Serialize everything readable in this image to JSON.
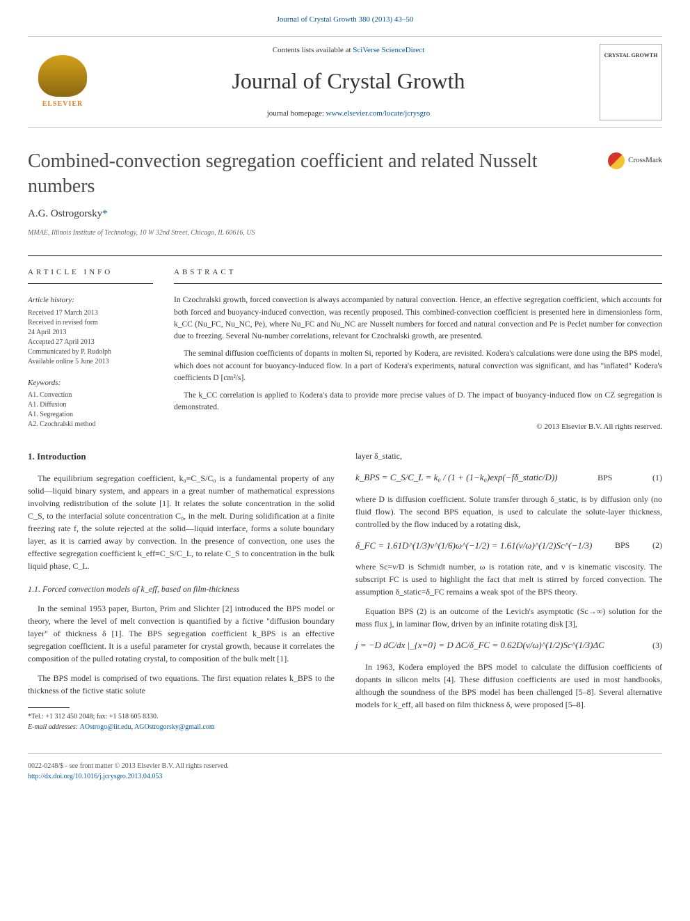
{
  "header": {
    "top_link": "Journal of Crystal Growth 380 (2013) 43–50",
    "contents_prefix": "Contents lists available at ",
    "contents_link": "SciVerse ScienceDirect",
    "journal_title": "Journal of Crystal Growth",
    "homepage_prefix": "journal homepage: ",
    "homepage_link": "www.elsevier.com/locate/jcrysgro",
    "elsevier_label": "ELSEVIER",
    "crystal_cover": "CRYSTAL GROWTH"
  },
  "article": {
    "title": "Combined-convection segregation coefficient and related Nusselt numbers",
    "crossmark": "CrossMark",
    "author": "A.G. Ostrogorsky",
    "author_mark": "*",
    "affiliation": "MMAE, Illinois Institute of Technology, 10 W 32nd Street, Chicago, IL 60616, US"
  },
  "info": {
    "heading": "ARTICLE INFO",
    "history_label": "Article history:",
    "hist1": "Received 17 March 2013",
    "hist2": "Received in revised form",
    "hist3": "24 April 2013",
    "hist4": "Accepted 27 April 2013",
    "hist5": "Communicated by P. Rudolph",
    "hist6": "Available online 5 June 2013",
    "keywords_label": "Keywords:",
    "kw1": "A1. Convection",
    "kw2": "A1. Diffusion",
    "kw3": "A1. Segregation",
    "kw4": "A2. Czochralski method"
  },
  "abstract": {
    "heading": "ABSTRACT",
    "p1": "In Czochralski growth, forced convection is always accompanied by natural convection. Hence, an effective segregation coefficient, which accounts for both forced and buoyancy-induced convection, was recently proposed. This combined-convection coefficient is presented here in dimensionless form, k_CC (Nu_FC, Nu_NC, Pe), where Nu_FC and Nu_NC are Nusselt numbers for forced and natural convection and Pe is Peclet number for convection due to freezing. Several Nu-number correlations, relevant for Czochralski growth, are presented.",
    "p2": "The seminal diffusion coefficients of dopants in molten Si, reported by Kodera, are revisited. Kodera's calculations were done using the BPS model, which does not account for buoyancy-induced flow. In a part of Kodera's experiments, natural convection was significant, and has \"inflated\" Kodera's coefficients D [cm²/s].",
    "p3": "The k_CC correlation is applied to Kodera's data to provide more precise values of D. The impact of buoyancy-induced flow on CZ segregation is demonstrated.",
    "copyright": "© 2013 Elsevier B.V. All rights reserved."
  },
  "body": {
    "section1": "1. Introduction",
    "intro_p1": "The equilibrium segregation coefficient, k₀≡C_S/C₀ is a fundamental property of any solid—liquid binary system, and appears in a great number of mathematical expressions involving redistribution of the solute [1]. It relates the solute concentration in the solid C_S, to the interfacial solute concentration C₀, in the melt. During solidification at a finite freezing rate f, the solute rejected at the solid—liquid interface, forms a solute boundary layer, as it is carried away by convection. In the presence of convection, one uses the effective segregation coefficient k_eff≡C_S/C_L, to relate C_S to concentration in the bulk liquid phase, C_L.",
    "subsection11": "1.1. Forced convection models of k_eff, based on film-thickness",
    "p11_1": "In the seminal 1953 paper, Burton, Prim and Slichter [2] introduced the BPS model or theory, where the level of melt convection is quantified by a fictive \"diffusion boundary layer\" of thickness δ [1]. The BPS segregation coefficient k_BPS is an effective segregation coefficient. It is a useful parameter for crystal growth, because it correlates the composition of the pulled rotating crystal, to composition of the bulk melt [1].",
    "p11_2": "The BPS model is comprised of two equations. The first equation relates k_BPS to the thickness of the fictive static solute",
    "col2_line1": "layer δ_static,",
    "eq1": "k_BPS = C_S/C_L = k₀ / (1 + (1−k₀)exp(−fδ_static/D))",
    "eq1_label": "BPS",
    "eq1_num": "(1)",
    "col2_p2": "where D is diffusion coefficient. Solute transfer through δ_static, is by diffusion only (no fluid flow). The second BPS equation, is used to calculate the solute-layer thickness, controlled by the flow induced by a rotating disk,",
    "eq2": "δ_FC = 1.61D^(1/3)ν^(1/6)ω^(−1/2) = 1.61(ν/ω)^(1/2)Sc^(−1/3)",
    "eq2_label": "BPS",
    "eq2_num": "(2)",
    "col2_p3": "where Sc=ν/D is Schmidt number, ω is rotation rate, and ν is kinematic viscosity. The subscript FC is used to highlight the fact that melt is stirred by forced convection. The assumption δ_static=δ_FC remains a weak spot of the BPS theory.",
    "col2_p4": "Equation BPS (2) is an outcome of the Levich's asymptotic (Sc→∞) solution for the mass flux j, in laminar flow, driven by an infinite rotating disk [3],",
    "eq3": "j = −D dC/dx |_{x=0} = D ΔC/δ_FC = 0.62D(ν/ω)^(1/2)Sc^(1/3)ΔC",
    "eq3_num": "(3)",
    "col2_p5": "In 1963, Kodera employed the BPS model to calculate the diffusion coefficients of dopants in silicon melts [4]. These diffusion coefficients are used in most handbooks, although the soundness of the BPS model has been challenged [5–8]. Several alternative models for k_eff, all based on film thickness δ, were proposed [5–8]."
  },
  "footer": {
    "footnote_star": "*Tel.: +1 312 450 2048; fax: +1 518 605 8330.",
    "email_label": "E-mail addresses: ",
    "email1": "AOstrogo@iit.edu",
    "email_sep": ", ",
    "email2": "AGOstrogorsky@gmail.com",
    "issn": "0022-0248/$ - see front matter © 2013 Elsevier B.V. All rights reserved.",
    "doi": "http://dx.doi.org/10.1016/j.jcrysgro.2013.04.053"
  }
}
